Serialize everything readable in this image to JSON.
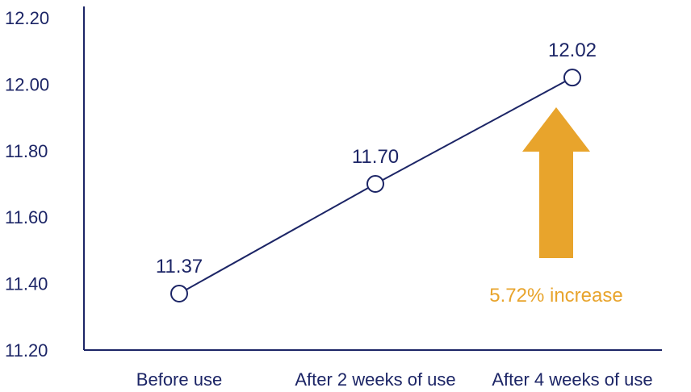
{
  "chart_data": {
    "type": "line",
    "categories": [
      "Before use",
      "After 2 weeks of use",
      "After 4 weeks of use"
    ],
    "values": [
      11.37,
      11.7,
      12.02
    ],
    "data_labels": [
      "11.37",
      "11.70",
      "12.02"
    ],
    "yticks": [
      "11.20",
      "11.40",
      "11.60",
      "11.80",
      "12.00",
      "12.20"
    ],
    "ylim": [
      11.2,
      12.2
    ],
    "grid": false,
    "title": "",
    "xlabel": "",
    "ylabel": "",
    "annotation": {
      "text": "5.72% increase",
      "shape": "up-arrow"
    },
    "colors": {
      "axis": "#1c2566",
      "line": "#1c2566",
      "marker_fill": "#ffffff",
      "text": "#1c2566",
      "arrow": "#e8a42c",
      "annotation_text": "#e8a42c"
    }
  }
}
